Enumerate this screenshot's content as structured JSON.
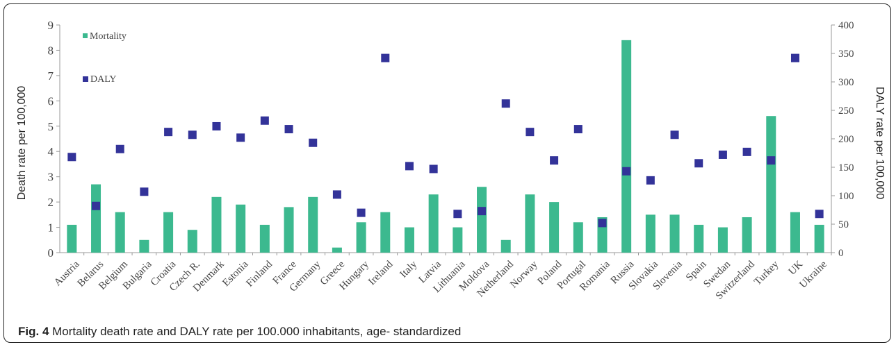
{
  "chart_data": {
    "type": "bar",
    "categories": [
      "Austria",
      "Belarus",
      "Belgium",
      "Bulgaria",
      "Croatia",
      "Czech R.",
      "Denmark",
      "Estonia",
      "Finland",
      "France",
      "Germany",
      "Greece",
      "Hungary",
      "Ireland",
      "Italy",
      "Latvia",
      "Lithuania",
      "Moldova",
      "Netherland",
      "Norway",
      "Poland",
      "Portugal",
      "Romania",
      "Russia",
      "Slovakia",
      "Slovenia",
      "Spain",
      "Swedan",
      "Switzerland",
      "Turkey",
      "UK",
      "Ukraine"
    ],
    "series": [
      {
        "name": "Mortality",
        "type": "bar",
        "axis": "left",
        "color": "#3cb98f",
        "values": [
          1.1,
          2.7,
          1.6,
          0.5,
          1.6,
          0.9,
          2.2,
          1.9,
          1.1,
          1.8,
          2.2,
          0.2,
          1.2,
          1.6,
          1.0,
          2.3,
          1.0,
          2.6,
          0.5,
          2.3,
          2.0,
          1.2,
          1.4,
          8.4,
          1.5,
          1.5,
          1.1,
          1.0,
          1.4,
          5.4,
          1.6,
          1.1
        ]
      },
      {
        "name": "DALY",
        "type": "scatter",
        "axis": "right",
        "color": "#333399",
        "values": [
          168,
          82,
          182,
          107,
          212,
          207,
          222,
          202,
          232,
          217,
          193,
          102,
          70,
          342,
          152,
          147,
          68,
          73,
          262,
          212,
          162,
          217,
          52,
          143,
          127,
          207,
          157,
          172,
          177,
          162,
          342,
          68
        ]
      }
    ],
    "ylabel": "Death rate per 100,000",
    "ylabel_right": "DALY rate per 100,000",
    "ylim": [
      0,
      9
    ],
    "ylim_right": [
      0,
      400
    ],
    "yticks": [
      "0",
      "1",
      "2",
      "3",
      "4",
      "5",
      "6",
      "7",
      "8",
      "9"
    ],
    "yticks_right": [
      "0",
      "50",
      "100",
      "150",
      "200",
      "250",
      "300",
      "350",
      "400"
    ],
    "legend_position": "top-left",
    "grid": false
  },
  "caption": {
    "label": "Fig. 4",
    "text": "Mortality death rate and DALY rate per 100.000 inhabitants, age- standardized"
  }
}
